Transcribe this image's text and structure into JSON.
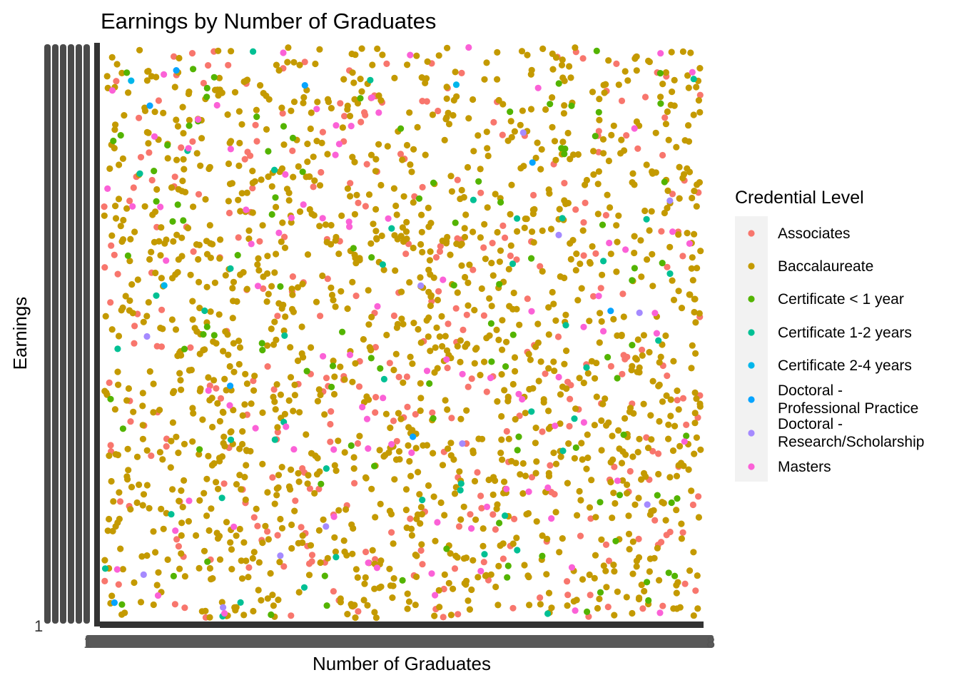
{
  "chart_data": {
    "type": "scatter",
    "title": "Earnings by Number of Graduates",
    "xlabel": "Number of Graduates",
    "ylabel": "Earnings",
    "x_axis": "categorical (one tick per distinct graduate count; overlapping labels illegible)",
    "y_axis": "categorical (one tick per distinct earnings value; overlapping labels illegible)",
    "grid": false,
    "legend": {
      "title": "Credential Level",
      "position": "right",
      "entries": [
        {
          "label": "Associates",
          "color": "#F8766D"
        },
        {
          "label": "Baccalaureate",
          "color": "#C49A00"
        },
        {
          "label": "Certificate < 1 year",
          "color": "#53B400"
        },
        {
          "label": "Certificate 1-2 years",
          "color": "#00C094"
        },
        {
          "label": "Certificate 2-4 years",
          "color": "#00B6EB"
        },
        {
          "label": "Doctoral -\nProfessional Practice",
          "color": "#06A4FF"
        },
        {
          "label": "Doctoral -\nResearch/Scholarship",
          "color": "#A58AFF"
        },
        {
          "label": "Masters",
          "color": "#FB61D7"
        }
      ]
    },
    "series": [
      {
        "name": "Associates",
        "approx_point_count": 360,
        "x_range_rank": [
          0,
          1
        ],
        "y_range_rank": [
          0,
          1
        ]
      },
      {
        "name": "Baccalaureate",
        "approx_point_count": 1450,
        "x_range_rank": [
          0,
          1
        ],
        "y_range_rank": [
          0,
          1
        ]
      },
      {
        "name": "Certificate < 1 year",
        "approx_point_count": 110,
        "x_range_rank": [
          0,
          1
        ],
        "y_range_rank": [
          0,
          1
        ]
      },
      {
        "name": "Certificate 1-2 years",
        "approx_point_count": 45,
        "x_range_rank": [
          0,
          1
        ],
        "y_range_rank": [
          0,
          1
        ]
      },
      {
        "name": "Certificate 2-4 years",
        "approx_point_count": 3,
        "x_range_rank": [
          0,
          1
        ],
        "y_range_rank": [
          0,
          1
        ]
      },
      {
        "name": "Doctoral -\nProfessional Practice",
        "approx_point_count": 8,
        "x_range_rank": [
          0,
          1
        ],
        "y_range_rank": [
          0,
          1
        ]
      },
      {
        "name": "Doctoral -\nResearch/Scholarship",
        "approx_point_count": 12,
        "x_range_rank": [
          0,
          1
        ],
        "y_range_rank": [
          0,
          1
        ]
      },
      {
        "name": "Masters",
        "approx_point_count": 95,
        "x_range_rank": [
          0,
          1
        ],
        "y_range_rank": [
          0,
          1
        ]
      }
    ],
    "visible_tick_fragments": {
      "x_first": "1",
      "x_last": "8",
      "y_bottom": "1"
    }
  }
}
